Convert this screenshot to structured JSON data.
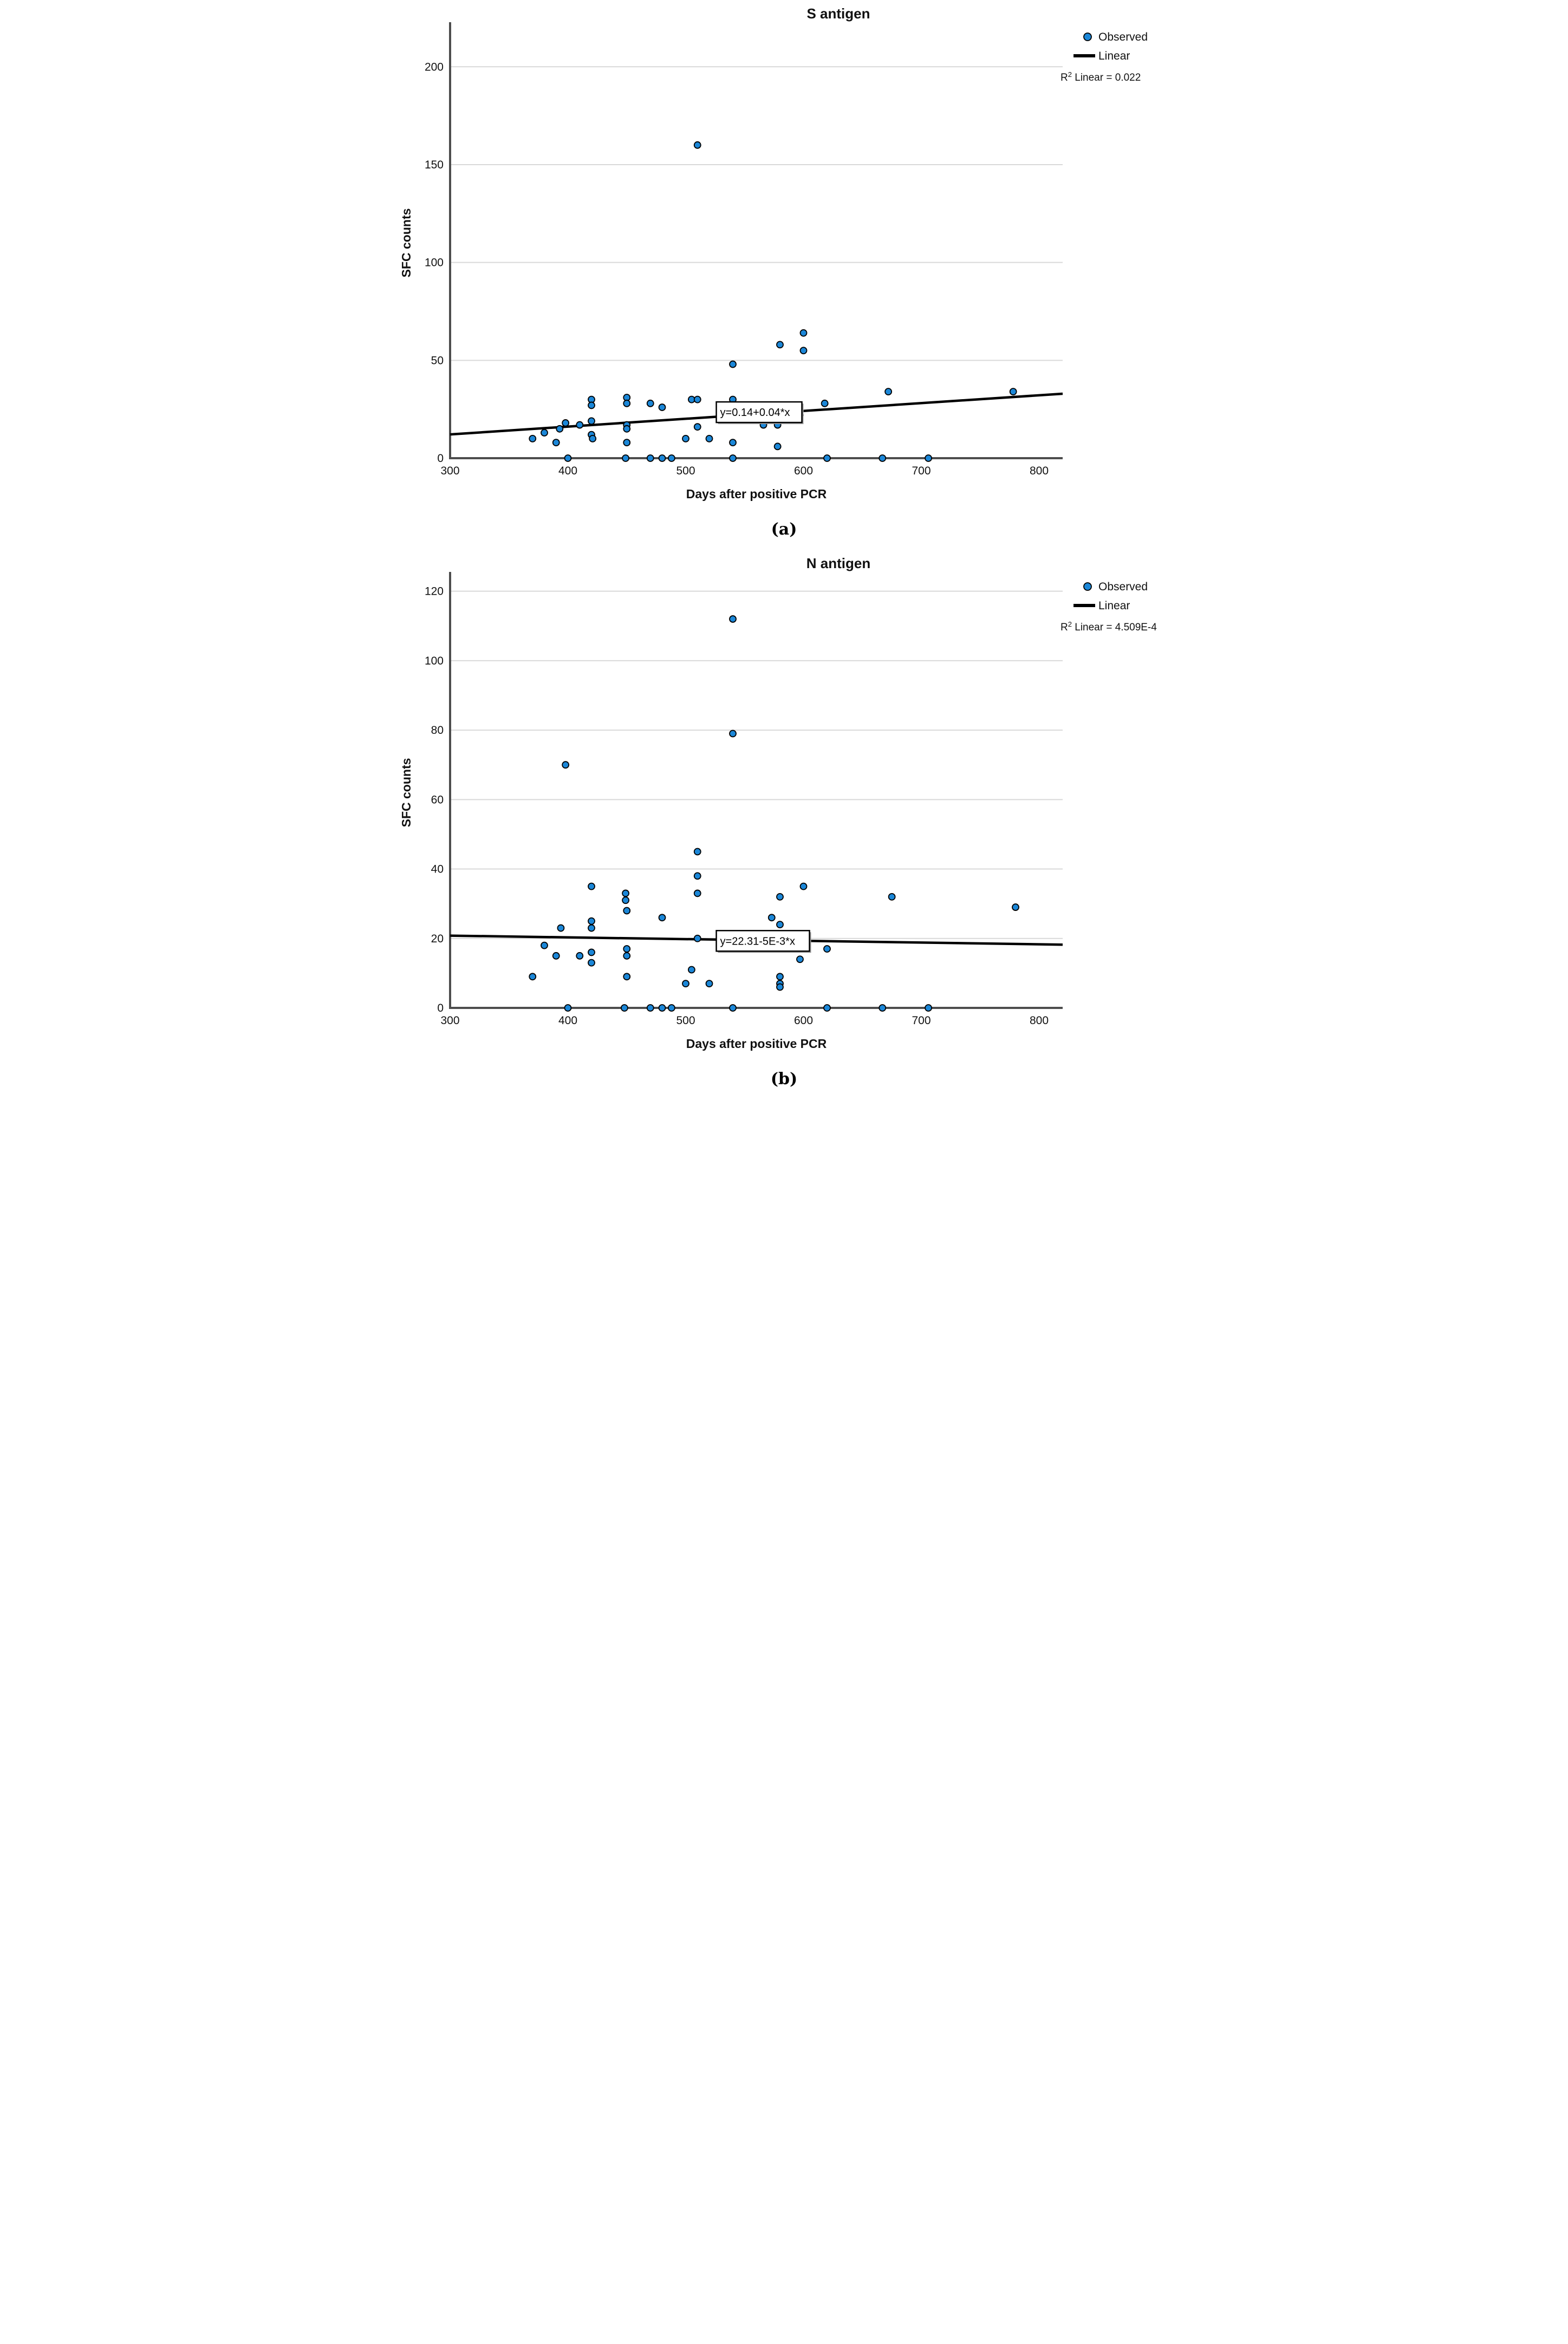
{
  "figure": {
    "captions": [
      "(a)",
      "(b)"
    ]
  },
  "style": {
    "point_fill": "#1b87d8",
    "point_stroke": "#000000",
    "regression_color": "#000000",
    "grid_color": "#d9d9d9",
    "spine_color": "#4d4d4d",
    "text_color": "#111111",
    "equation_box_fill": "#ffffff",
    "equation_box_border": "#000000"
  },
  "chart_data": [
    {
      "type": "scatter",
      "title": "S antigen",
      "xlabel": "Days after positive PCR",
      "ylabel": "SFC counts",
      "xlim": [
        300,
        820
      ],
      "ylim": [
        0,
        220
      ],
      "xticks": [
        300,
        400,
        500,
        600,
        700,
        800
      ],
      "yticks": [
        0,
        50,
        100,
        150,
        200
      ],
      "grid": "horizontal",
      "legend": {
        "observed": "Observed",
        "linear": "Linear"
      },
      "r2_base": "R",
      "r2_sup": "2",
      "r2_rest": " Linear = 0.022",
      "equation": "y=0.14+0.04*x",
      "equation_box": {
        "left_day": 526,
        "center_value": 23.5,
        "width": 158,
        "height": 38
      },
      "regression": {
        "intercept": 0.14,
        "slope": 0.04
      },
      "caption": "(a)",
      "points": [
        [
          370,
          10
        ],
        [
          380,
          13
        ],
        [
          390,
          8
        ],
        [
          393,
          15
        ],
        [
          398,
          18
        ],
        [
          400,
          0
        ],
        [
          410,
          17
        ],
        [
          420,
          30
        ],
        [
          420,
          27
        ],
        [
          420,
          19
        ],
        [
          420,
          12
        ],
        [
          421,
          10
        ],
        [
          449,
          0
        ],
        [
          450,
          31
        ],
        [
          450,
          28
        ],
        [
          450,
          17
        ],
        [
          450,
          15
        ],
        [
          450,
          8
        ],
        [
          470,
          28
        ],
        [
          470,
          0
        ],
        [
          480,
          26
        ],
        [
          480,
          0
        ],
        [
          488,
          0
        ],
        [
          500,
          10
        ],
        [
          505,
          30
        ],
        [
          510,
          160
        ],
        [
          510,
          30
        ],
        [
          510,
          16
        ],
        [
          520,
          10
        ],
        [
          540,
          48
        ],
        [
          540,
          30
        ],
        [
          540,
          8
        ],
        [
          540,
          0
        ],
        [
          566,
          17
        ],
        [
          578,
          17
        ],
        [
          578,
          6
        ],
        [
          580,
          58
        ],
        [
          597,
          22
        ],
        [
          600,
          64
        ],
        [
          600,
          55
        ],
        [
          618,
          28
        ],
        [
          620,
          0
        ],
        [
          667,
          0
        ],
        [
          672,
          34
        ],
        [
          706,
          0
        ],
        [
          778,
          34
        ]
      ]
    },
    {
      "type": "scatter",
      "title": "N antigen",
      "xlabel": "Days after positive PCR",
      "ylabel": "SFC counts",
      "xlim": [
        300,
        820
      ],
      "ylim": [
        0,
        124
      ],
      "xticks": [
        300,
        400,
        500,
        600,
        700,
        800
      ],
      "yticks": [
        0,
        20,
        40,
        60,
        80,
        100,
        120
      ],
      "grid": "horizontal",
      "legend": {
        "observed": "Observed",
        "linear": "Linear"
      },
      "r2_base": "R",
      "r2_sup": "2",
      "r2_rest": " Linear = 4.509E-4",
      "equation": "y=22.31-5E-3*x",
      "equation_box": {
        "left_day": 526,
        "center_value": 19.3,
        "width": 172,
        "height": 38
      },
      "regression": {
        "intercept": 22.31,
        "slope": -0.005
      },
      "caption": "(b)",
      "points": [
        [
          370,
          9
        ],
        [
          380,
          18
        ],
        [
          390,
          15
        ],
        [
          394,
          23
        ],
        [
          398,
          70
        ],
        [
          400,
          0
        ],
        [
          410,
          15
        ],
        [
          420,
          35
        ],
        [
          420,
          25
        ],
        [
          420,
          23
        ],
        [
          420,
          16
        ],
        [
          420,
          13
        ],
        [
          448,
          0
        ],
        [
          449,
          33
        ],
        [
          449,
          31
        ],
        [
          450,
          28
        ],
        [
          450,
          17
        ],
        [
          450,
          15
        ],
        [
          450,
          9
        ],
        [
          470,
          0
        ],
        [
          480,
          26
        ],
        [
          480,
          0
        ],
        [
          488,
          0
        ],
        [
          500,
          7
        ],
        [
          505,
          11
        ],
        [
          510,
          45
        ],
        [
          510,
          38
        ],
        [
          510,
          33
        ],
        [
          510,
          20
        ],
        [
          520,
          7
        ],
        [
          540,
          112
        ],
        [
          540,
          79
        ],
        [
          540,
          0
        ],
        [
          573,
          26
        ],
        [
          580,
          32
        ],
        [
          580,
          24
        ],
        [
          580,
          9
        ],
        [
          580,
          7
        ],
        [
          580,
          6
        ],
        [
          597,
          14
        ],
        [
          600,
          35
        ],
        [
          620,
          17
        ],
        [
          620,
          0
        ],
        [
          667,
          0
        ],
        [
          675,
          32
        ],
        [
          706,
          0
        ],
        [
          780,
          29
        ]
      ]
    }
  ]
}
